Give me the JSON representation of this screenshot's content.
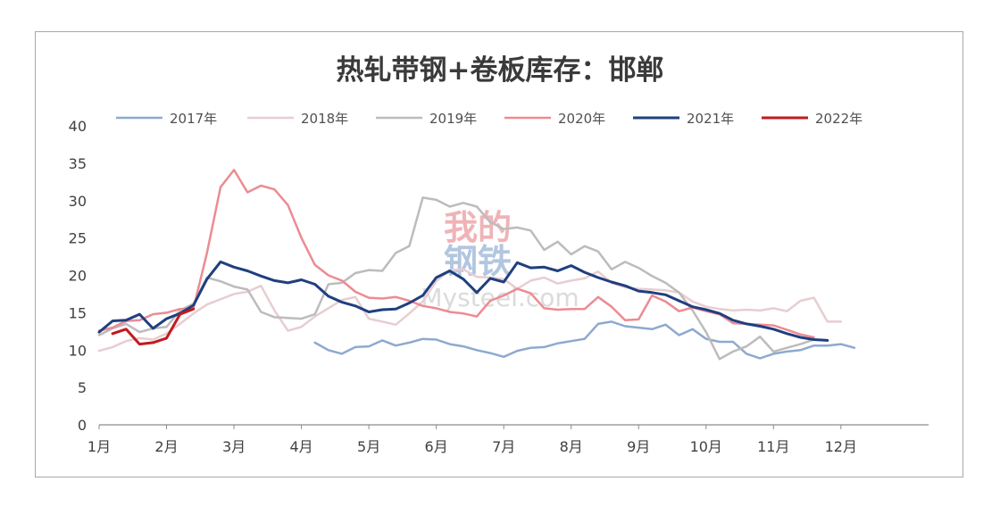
{
  "watermark": {
    "line1": "我的",
    "line2": "钢铁",
    "site": "Mysteel.com"
  },
  "chart_data": {
    "type": "line",
    "title": "热轧带钢+卷板库存：邯郸",
    "xlabel": "",
    "ylabel": "",
    "ylim": [
      0,
      40
    ],
    "yticks": [
      0,
      5,
      10,
      15,
      20,
      25,
      30,
      35,
      40
    ],
    "xlim": [
      1,
      13.3
    ],
    "xticks": [
      {
        "label": "1月",
        "x": 1
      },
      {
        "label": "2月",
        "x": 2
      },
      {
        "label": "3月",
        "x": 3
      },
      {
        "label": "4月",
        "x": 4
      },
      {
        "label": "5月",
        "x": 5
      },
      {
        "label": "6月",
        "x": 6
      },
      {
        "label": "7月",
        "x": 7
      },
      {
        "label": "8月",
        "x": 8
      },
      {
        "label": "9月",
        "x": 9
      },
      {
        "label": "10月",
        "x": 10
      },
      {
        "label": "11月",
        "x": 11
      },
      {
        "label": "12月",
        "x": 12
      }
    ],
    "grid": false,
    "legend": "top",
    "series": [
      {
        "name": "2017年",
        "color": "#8ea9cf",
        "width": 2.5,
        "points": [
          [
            4.2,
            11.0
          ],
          [
            4.4,
            10.0
          ],
          [
            4.6,
            9.5
          ],
          [
            4.8,
            10.4
          ],
          [
            5.0,
            10.5
          ],
          [
            5.2,
            11.3
          ],
          [
            5.4,
            10.6
          ],
          [
            5.6,
            11.0
          ],
          [
            5.8,
            11.5
          ],
          [
            6.0,
            11.4
          ],
          [
            6.2,
            10.8
          ],
          [
            6.4,
            10.5
          ],
          [
            6.6,
            10.0
          ],
          [
            6.8,
            9.6
          ],
          [
            7.0,
            9.1
          ],
          [
            7.2,
            9.9
          ],
          [
            7.4,
            10.3
          ],
          [
            7.6,
            10.4
          ],
          [
            7.8,
            10.9
          ],
          [
            8.0,
            11.2
          ],
          [
            8.2,
            11.5
          ],
          [
            8.4,
            13.5
          ],
          [
            8.6,
            13.8
          ],
          [
            8.8,
            13.2
          ],
          [
            9.0,
            13.0
          ],
          [
            9.2,
            12.8
          ],
          [
            9.4,
            13.4
          ],
          [
            9.6,
            12.0
          ],
          [
            9.8,
            12.8
          ],
          [
            10.0,
            11.5
          ],
          [
            10.2,
            11.1
          ],
          [
            10.4,
            11.1
          ],
          [
            10.6,
            9.5
          ],
          [
            10.8,
            8.9
          ],
          [
            11.0,
            9.5
          ],
          [
            11.2,
            9.8
          ],
          [
            11.4,
            10.0
          ],
          [
            11.6,
            10.6
          ],
          [
            11.8,
            10.6
          ],
          [
            12.0,
            10.8
          ],
          [
            12.2,
            10.3
          ]
        ]
      },
      {
        "name": "2018年",
        "color": "#e8cdd1",
        "width": 2.5,
        "points": [
          [
            1.0,
            9.9
          ],
          [
            1.2,
            10.4
          ],
          [
            1.4,
            11.2
          ],
          [
            1.6,
            11.6
          ],
          [
            1.8,
            11.4
          ],
          [
            2.0,
            12.2
          ],
          [
            2.2,
            13.5
          ],
          [
            2.4,
            14.9
          ],
          [
            2.6,
            16.1
          ],
          [
            2.8,
            16.8
          ],
          [
            3.0,
            17.5
          ],
          [
            3.2,
            17.8
          ],
          [
            3.4,
            18.6
          ],
          [
            3.6,
            15.3
          ],
          [
            3.8,
            12.6
          ],
          [
            4.0,
            13.1
          ],
          [
            4.2,
            14.5
          ],
          [
            4.4,
            15.6
          ],
          [
            4.6,
            16.7
          ],
          [
            4.8,
            17.1
          ],
          [
            5.0,
            14.2
          ],
          [
            5.2,
            13.8
          ],
          [
            5.4,
            13.4
          ],
          [
            5.6,
            14.9
          ],
          [
            5.8,
            16.5
          ],
          [
            6.0,
            19.2
          ],
          [
            6.2,
            20.7
          ],
          [
            6.4,
            20.8
          ],
          [
            6.6,
            19.8
          ],
          [
            6.8,
            19.7
          ],
          [
            7.0,
            19.5
          ],
          [
            7.2,
            18.2
          ],
          [
            7.4,
            19.3
          ],
          [
            7.6,
            19.7
          ],
          [
            7.8,
            18.9
          ],
          [
            8.0,
            19.3
          ],
          [
            8.2,
            19.6
          ],
          [
            8.4,
            20.5
          ],
          [
            8.6,
            19.0
          ],
          [
            8.8,
            18.4
          ],
          [
            9.0,
            18.2
          ],
          [
            9.2,
            18.1
          ],
          [
            9.4,
            18.0
          ],
          [
            9.6,
            17.7
          ],
          [
            9.8,
            16.5
          ],
          [
            10.0,
            15.8
          ],
          [
            10.2,
            15.5
          ],
          [
            10.4,
            15.3
          ],
          [
            10.6,
            15.4
          ],
          [
            10.8,
            15.3
          ],
          [
            11.0,
            15.6
          ],
          [
            11.2,
            15.2
          ],
          [
            11.4,
            16.6
          ],
          [
            11.6,
            17.0
          ],
          [
            11.8,
            13.8
          ],
          [
            12.0,
            13.8
          ]
        ]
      },
      {
        "name": "2019年",
        "color": "#bcbcbc",
        "width": 2.5,
        "points": [
          [
            1.0,
            12.0
          ],
          [
            1.2,
            12.9
          ],
          [
            1.4,
            13.5
          ],
          [
            1.6,
            12.4
          ],
          [
            1.8,
            12.9
          ],
          [
            2.0,
            13.1
          ],
          [
            2.2,
            15.3
          ],
          [
            2.4,
            16.2
          ],
          [
            2.6,
            19.7
          ],
          [
            2.8,
            19.2
          ],
          [
            3.0,
            18.5
          ],
          [
            3.2,
            18.1
          ],
          [
            3.4,
            15.1
          ],
          [
            3.6,
            14.4
          ],
          [
            3.8,
            14.3
          ],
          [
            4.0,
            14.2
          ],
          [
            4.2,
            14.8
          ],
          [
            4.4,
            18.8
          ],
          [
            4.6,
            19.0
          ],
          [
            4.8,
            20.3
          ],
          [
            5.0,
            20.7
          ],
          [
            5.2,
            20.6
          ],
          [
            5.4,
            23.0
          ],
          [
            5.6,
            23.9
          ],
          [
            5.8,
            30.4
          ],
          [
            6.0,
            30.1
          ],
          [
            6.2,
            29.2
          ],
          [
            6.4,
            29.7
          ],
          [
            6.6,
            29.2
          ],
          [
            6.8,
            27.1
          ],
          [
            7.0,
            26.2
          ],
          [
            7.2,
            26.4
          ],
          [
            7.4,
            26.0
          ],
          [
            7.6,
            23.4
          ],
          [
            7.8,
            24.5
          ],
          [
            8.0,
            22.8
          ],
          [
            8.2,
            23.9
          ],
          [
            8.4,
            23.2
          ],
          [
            8.6,
            20.8
          ],
          [
            8.8,
            21.8
          ],
          [
            9.0,
            21.0
          ],
          [
            9.2,
            19.9
          ],
          [
            9.4,
            19.0
          ],
          [
            9.6,
            17.7
          ],
          [
            9.8,
            15.3
          ],
          [
            10.0,
            12.4
          ],
          [
            10.2,
            8.8
          ],
          [
            10.4,
            9.8
          ],
          [
            10.6,
            10.5
          ],
          [
            10.8,
            11.8
          ],
          [
            11.0,
            9.8
          ],
          [
            11.2,
            10.3
          ],
          [
            11.4,
            10.8
          ],
          [
            11.6,
            11.4
          ],
          [
            11.8,
            11.3
          ]
        ]
      },
      {
        "name": "2020年",
        "color": "#ec8b93",
        "width": 2.5,
        "points": [
          [
            1.0,
            12.6
          ],
          [
            1.2,
            13.0
          ],
          [
            1.4,
            13.9
          ],
          [
            1.6,
            14.0
          ],
          [
            1.8,
            14.8
          ],
          [
            2.0,
            15.0
          ],
          [
            2.2,
            15.5
          ],
          [
            2.4,
            15.6
          ],
          [
            2.6,
            23.0
          ],
          [
            2.8,
            31.8
          ],
          [
            3.0,
            34.1
          ],
          [
            3.2,
            31.1
          ],
          [
            3.4,
            32.0
          ],
          [
            3.6,
            31.5
          ],
          [
            3.8,
            29.4
          ],
          [
            4.0,
            25.0
          ],
          [
            4.2,
            21.4
          ],
          [
            4.4,
            20.0
          ],
          [
            4.6,
            19.3
          ],
          [
            4.8,
            17.8
          ],
          [
            5.0,
            17.0
          ],
          [
            5.2,
            16.9
          ],
          [
            5.4,
            17.1
          ],
          [
            5.6,
            16.6
          ],
          [
            5.8,
            15.9
          ],
          [
            6.0,
            15.6
          ],
          [
            6.2,
            15.1
          ],
          [
            6.4,
            14.9
          ],
          [
            6.6,
            14.5
          ],
          [
            6.8,
            16.6
          ],
          [
            7.0,
            17.3
          ],
          [
            7.2,
            18.2
          ],
          [
            7.4,
            17.6
          ],
          [
            7.6,
            15.6
          ],
          [
            7.8,
            15.4
          ],
          [
            8.0,
            15.5
          ],
          [
            8.2,
            15.5
          ],
          [
            8.4,
            17.1
          ],
          [
            8.6,
            15.8
          ],
          [
            8.8,
            14.0
          ],
          [
            9.0,
            14.1
          ],
          [
            9.2,
            17.3
          ],
          [
            9.4,
            16.5
          ],
          [
            9.6,
            15.2
          ],
          [
            9.8,
            15.7
          ],
          [
            10.0,
            15.2
          ],
          [
            10.2,
            14.8
          ],
          [
            10.4,
            13.6
          ],
          [
            10.6,
            13.5
          ],
          [
            10.8,
            13.4
          ],
          [
            11.0,
            13.3
          ],
          [
            11.2,
            12.7
          ],
          [
            11.4,
            12.1
          ],
          [
            11.6,
            11.7
          ]
        ]
      },
      {
        "name": "2021年",
        "color": "#1f3f7f",
        "width": 3,
        "points": [
          [
            1.0,
            12.4
          ],
          [
            1.2,
            13.9
          ],
          [
            1.4,
            14.0
          ],
          [
            1.6,
            14.8
          ],
          [
            1.8,
            12.9
          ],
          [
            2.0,
            14.2
          ],
          [
            2.2,
            14.9
          ],
          [
            2.4,
            16.0
          ],
          [
            2.6,
            19.5
          ],
          [
            2.8,
            21.8
          ],
          [
            3.0,
            21.1
          ],
          [
            3.2,
            20.6
          ],
          [
            3.4,
            19.9
          ],
          [
            3.6,
            19.3
          ],
          [
            3.8,
            19.0
          ],
          [
            4.0,
            19.4
          ],
          [
            4.2,
            18.8
          ],
          [
            4.4,
            17.2
          ],
          [
            4.6,
            16.4
          ],
          [
            4.8,
            15.9
          ],
          [
            5.0,
            15.1
          ],
          [
            5.2,
            15.4
          ],
          [
            5.4,
            15.5
          ],
          [
            5.6,
            16.3
          ],
          [
            5.8,
            17.3
          ],
          [
            6.0,
            19.7
          ],
          [
            6.2,
            20.6
          ],
          [
            6.4,
            19.5
          ],
          [
            6.6,
            17.7
          ],
          [
            6.8,
            19.6
          ],
          [
            7.0,
            19.1
          ],
          [
            7.2,
            21.7
          ],
          [
            7.4,
            21.0
          ],
          [
            7.6,
            21.1
          ],
          [
            7.8,
            20.6
          ],
          [
            8.0,
            21.3
          ],
          [
            8.2,
            20.4
          ],
          [
            8.4,
            19.7
          ],
          [
            8.6,
            19.1
          ],
          [
            8.8,
            18.6
          ],
          [
            9.0,
            17.9
          ],
          [
            9.2,
            17.7
          ],
          [
            9.4,
            17.4
          ],
          [
            9.6,
            16.6
          ],
          [
            9.8,
            15.8
          ],
          [
            10.0,
            15.4
          ],
          [
            10.2,
            14.9
          ],
          [
            10.4,
            14.0
          ],
          [
            10.6,
            13.5
          ],
          [
            10.8,
            13.2
          ],
          [
            11.0,
            12.8
          ],
          [
            11.2,
            12.2
          ],
          [
            11.4,
            11.7
          ],
          [
            11.6,
            11.4
          ],
          [
            11.8,
            11.3
          ]
        ]
      },
      {
        "name": "2022年",
        "color": "#c21a1f",
        "width": 3,
        "points": [
          [
            1.2,
            12.2
          ],
          [
            1.4,
            12.8
          ],
          [
            1.6,
            10.8
          ],
          [
            1.8,
            11.0
          ],
          [
            2.0,
            11.6
          ],
          [
            2.2,
            14.8
          ],
          [
            2.4,
            15.5
          ]
        ]
      }
    ]
  }
}
